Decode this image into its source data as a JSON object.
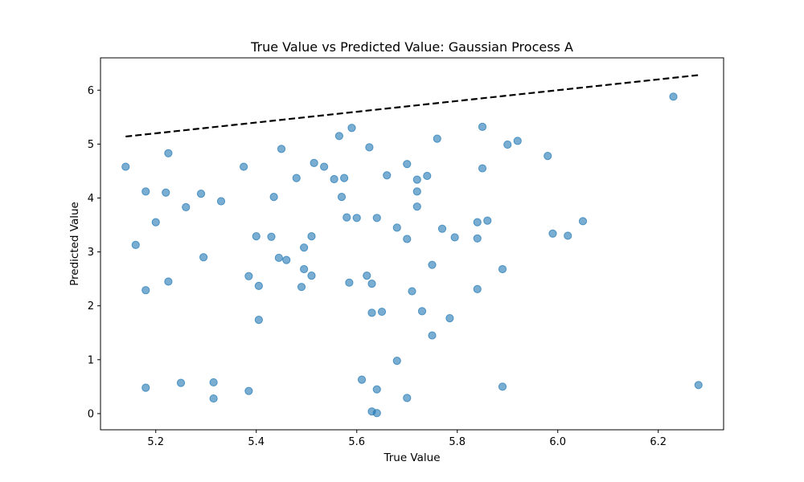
{
  "chart_data": {
    "type": "scatter",
    "title": "True Value vs Predicted Value: Gaussian Process A",
    "xlabel": "True Value",
    "ylabel": "Predicted Value",
    "xlim": [
      5.09,
      6.33
    ],
    "ylim": [
      -0.3,
      6.6
    ],
    "xticks": [
      5.2,
      5.4,
      5.6,
      5.8,
      6.0,
      6.2
    ],
    "xtick_labels": [
      "5.2",
      "5.4",
      "5.6",
      "5.8",
      "6.0",
      "6.2"
    ],
    "yticks": [
      0,
      1,
      2,
      3,
      4,
      5,
      6
    ],
    "ytick_labels": [
      "0",
      "1",
      "2",
      "3",
      "4",
      "5",
      "6"
    ],
    "grid": false,
    "colors": {
      "points": "#1f77b4",
      "reference_line": "#000000"
    },
    "reference_line": {
      "style": "dashed",
      "x": [
        5.14,
        6.28
      ],
      "y": [
        5.14,
        6.28
      ]
    },
    "series": [
      {
        "points": [
          [
            5.14,
            4.58
          ],
          [
            5.16,
            3.13
          ],
          [
            5.18,
            4.12
          ],
          [
            5.18,
            2.29
          ],
          [
            5.18,
            0.48
          ],
          [
            5.2,
            3.55
          ],
          [
            5.22,
            4.1
          ],
          [
            5.225,
            4.83
          ],
          [
            5.225,
            2.45
          ],
          [
            5.25,
            0.57
          ],
          [
            5.26,
            3.83
          ],
          [
            5.29,
            4.08
          ],
          [
            5.295,
            2.9
          ],
          [
            5.315,
            0.58
          ],
          [
            5.315,
            0.28
          ],
          [
            5.33,
            3.94
          ],
          [
            5.375,
            4.58
          ],
          [
            5.385,
            2.55
          ],
          [
            5.385,
            0.42
          ],
          [
            5.4,
            3.29
          ],
          [
            5.405,
            1.74
          ],
          [
            5.405,
            2.37
          ],
          [
            5.43,
            3.28
          ],
          [
            5.435,
            4.02
          ],
          [
            5.445,
            2.89
          ],
          [
            5.45,
            4.91
          ],
          [
            5.46,
            2.85
          ],
          [
            5.48,
            4.37
          ],
          [
            5.49,
            2.35
          ],
          [
            5.495,
            3.08
          ],
          [
            5.495,
            2.68
          ],
          [
            5.51,
            3.29
          ],
          [
            5.51,
            2.56
          ],
          [
            5.515,
            4.65
          ],
          [
            5.535,
            4.58
          ],
          [
            5.555,
            4.35
          ],
          [
            5.565,
            5.15
          ],
          [
            5.57,
            4.02
          ],
          [
            5.575,
            4.37
          ],
          [
            5.58,
            3.64
          ],
          [
            5.585,
            2.43
          ],
          [
            5.59,
            5.3
          ],
          [
            5.6,
            3.63
          ],
          [
            5.61,
            0.63
          ],
          [
            5.62,
            2.56
          ],
          [
            5.625,
            4.94
          ],
          [
            5.63,
            2.41
          ],
          [
            5.63,
            1.87
          ],
          [
            5.63,
            0.04
          ],
          [
            5.64,
            3.63
          ],
          [
            5.64,
            0.45
          ],
          [
            5.64,
            0.01
          ],
          [
            5.65,
            1.89
          ],
          [
            5.66,
            4.42
          ],
          [
            5.68,
            3.45
          ],
          [
            5.68,
            0.98
          ],
          [
            5.7,
            4.63
          ],
          [
            5.7,
            3.24
          ],
          [
            5.7,
            0.29
          ],
          [
            5.71,
            2.27
          ],
          [
            5.72,
            4.34
          ],
          [
            5.72,
            4.12
          ],
          [
            5.72,
            3.84
          ],
          [
            5.73,
            1.9
          ],
          [
            5.74,
            4.41
          ],
          [
            5.75,
            2.76
          ],
          [
            5.75,
            1.45
          ],
          [
            5.76,
            5.1
          ],
          [
            5.77,
            3.43
          ],
          [
            5.785,
            1.77
          ],
          [
            5.795,
            3.27
          ],
          [
            5.84,
            3.55
          ],
          [
            5.84,
            3.25
          ],
          [
            5.84,
            2.31
          ],
          [
            5.85,
            5.32
          ],
          [
            5.85,
            4.55
          ],
          [
            5.86,
            3.58
          ],
          [
            5.89,
            2.68
          ],
          [
            5.89,
            0.5
          ],
          [
            5.9,
            4.99
          ],
          [
            5.92,
            5.06
          ],
          [
            5.98,
            4.78
          ],
          [
            5.99,
            3.34
          ],
          [
            6.02,
            3.3
          ],
          [
            6.05,
            3.57
          ],
          [
            6.23,
            5.88
          ],
          [
            6.28,
            0.53
          ]
        ]
      }
    ]
  }
}
